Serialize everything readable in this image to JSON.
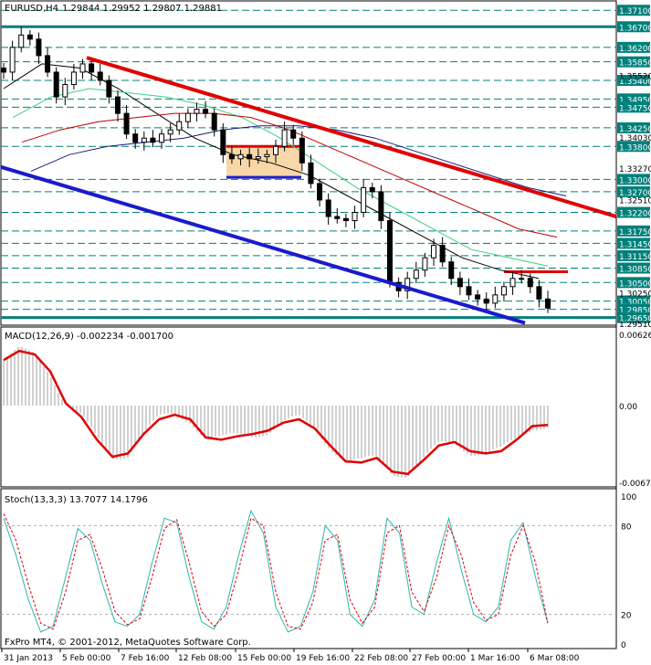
{
  "header": {
    "symbol": "EURUSD,H4",
    "ohlc": "1.29844 1.29952 1.29807 1.29881"
  },
  "macd_header": {
    "label": "MACD(12,26,9) -0.002234 -0.001700"
  },
  "stoch_header": {
    "label": "Stoch(13,3,3) 13.7077 14.1796"
  },
  "copyright": "FxPro MT4, © 2001-2012, MetaQuotes Software Corp.",
  "colors": {
    "price_label_bg": "#00807a",
    "hline": "#00807a",
    "red_line": "#e00000",
    "blue_line": "#1a1acc",
    "box_fill": "#f7d7a8",
    "ma_black": "#000000",
    "ma_green": "#3fd07f",
    "ma_darkred": "#c00000",
    "ma_navy": "#1c1c7a",
    "stoch_main": "#2bb5b0",
    "stoch_signal": "#e00000"
  },
  "chart_data": [
    {
      "type": "candlestick",
      "pane": "price",
      "symbol": "EURUSD",
      "timeframe": "H4",
      "ylim": [
        1.2951,
        1.3726
      ],
      "x_tick_labels": [
        "31 Jan 2013",
        "5 Feb 00:00",
        "7 Feb 16:00",
        "12 Feb 08:00",
        "15 Feb 00:00",
        "19 Feb 16:00",
        "22 Feb 08:00",
        "27 Feb 00:00",
        "1 Mar 16:00",
        "6 Mar 08:00"
      ],
      "y_tick_labels": [
        "1.37100",
        "1.36700",
        "1.36200",
        "1.35850",
        "1.35400",
        "1.34950",
        "1.34750",
        "1.34250",
        "1.33800",
        "1.33000",
        "1.32700",
        "1.32200",
        "1.31750",
        "1.31450",
        "1.31150",
        "1.30850",
        "1.30500",
        "1.30050",
        "1.29850",
        "1.29650"
      ],
      "extra_tick_labels": [
        "1.35520",
        "1.34030",
        "1.33270",
        "1.32510",
        "1.30250",
        "1.29510"
      ],
      "horizontal_levels": [
        1.371,
        1.367,
        1.362,
        1.3585,
        1.354,
        1.3495,
        1.3475,
        1.3425,
        1.338,
        1.33,
        1.327,
        1.322,
        1.3175,
        1.3145,
        1.3115,
        1.3085,
        1.305,
        1.3005,
        1.2985,
        1.2965
      ],
      "solid_levels": [
        1.367,
        1.2965
      ],
      "trendlines": [
        {
          "color": "red",
          "from": [
            "5 Feb 00:00",
            1.3595
          ],
          "to": [
            "right edge",
            1.321
          ]
        },
        {
          "color": "blue",
          "from": [
            "left edge",
            1.333
          ],
          "to": [
            "6 Mar 00:00",
            1.2952
          ]
        }
      ],
      "range_box": {
        "top": 1.338,
        "bottom": 1.3305,
        "from": "14 Feb",
        "to": "19 Feb"
      },
      "resistance_segment": {
        "level": 1.3076,
        "from": "1 Mar",
        "to": "6 Mar"
      },
      "moving_averages": [
        {
          "color": "black",
          "values": [
            1.352,
            1.358,
            1.357,
            1.352,
            1.346,
            1.34,
            1.336,
            1.334,
            1.331,
            1.326,
            1.321,
            1.316,
            1.311,
            1.308,
            1.306
          ]
        },
        {
          "color": "green",
          "values": [
            1.345,
            1.35,
            1.352,
            1.351,
            1.35,
            1.348,
            1.345,
            1.34,
            1.334,
            1.328,
            1.323,
            1.318,
            1.313,
            1.311,
            1.309
          ]
        },
        {
          "color": "dark red",
          "values": [
            1.339,
            1.342,
            1.344,
            1.345,
            1.346,
            1.346,
            1.345,
            1.342,
            1.338,
            1.334,
            1.33,
            1.326,
            1.322,
            1.318,
            1.316
          ]
        },
        {
          "color": "navy",
          "values": [
            1.332,
            1.336,
            1.338,
            1.339,
            1.34,
            1.342,
            1.343,
            1.343,
            1.342,
            1.34,
            1.337,
            1.334,
            1.331,
            1.328,
            1.326
          ]
        }
      ],
      "close_path": [
        1.356,
        1.362,
        1.365,
        1.364,
        1.36,
        1.356,
        1.35,
        1.353,
        1.356,
        1.358,
        1.356,
        1.354,
        1.35,
        1.346,
        1.341,
        1.339,
        1.34,
        1.339,
        1.341,
        1.342,
        1.344,
        1.346,
        1.347,
        1.346,
        1.342,
        1.336,
        1.335,
        1.336,
        1.335,
        1.3355,
        1.336,
        1.338,
        1.342,
        1.34,
        1.334,
        1.329,
        1.325,
        1.321,
        1.3205,
        1.32,
        1.322,
        1.328,
        1.327,
        1.32,
        1.305,
        1.303,
        1.306,
        1.308,
        1.311,
        1.314,
        1.31,
        1.306,
        1.304,
        1.302,
        1.301,
        1.3,
        1.302,
        1.304,
        1.306,
        1.306,
        1.304,
        1.301,
        1.2988
      ]
    },
    {
      "type": "histogram",
      "pane": "macd",
      "name": "MACD(12,26,9)",
      "ylim": [
        -0.00674,
        0.006264
      ],
      "y_tick_labels": [
        "0.006264",
        "0.00",
        "-0.00674"
      ],
      "signal_line": [
        0.004,
        0.0048,
        0.0045,
        0.003,
        0.0002,
        -0.001,
        -0.003,
        -0.0045,
        -0.0042,
        -0.0025,
        -0.0012,
        -0.0008,
        -0.0012,
        -0.0028,
        -0.003,
        -0.0027,
        -0.0025,
        -0.0022,
        -0.0015,
        -0.0012,
        -0.002,
        -0.0035,
        -0.0049,
        -0.005,
        -0.0046,
        -0.0058,
        -0.006,
        -0.0048,
        -0.0035,
        -0.0032,
        -0.004,
        -0.0042,
        -0.004,
        -0.003,
        -0.0018,
        -0.0017
      ]
    },
    {
      "type": "line",
      "pane": "stochastic",
      "name": "Stoch(13,3,3)",
      "ylim": [
        0,
        100
      ],
      "y_tick_labels": [
        "100",
        "80",
        "20",
        "0"
      ],
      "main_line": [
        85,
        60,
        30,
        8,
        12,
        45,
        78,
        70,
        40,
        15,
        12,
        20,
        55,
        85,
        82,
        45,
        15,
        10,
        25,
        60,
        90,
        75,
        25,
        8,
        12,
        35,
        80,
        70,
        20,
        12,
        30,
        85,
        75,
        25,
        20,
        55,
        85,
        50,
        20,
        15,
        25,
        70,
        82,
        45,
        14
      ],
      "signal_line": [
        88,
        70,
        40,
        14,
        10,
        35,
        70,
        74,
        50,
        22,
        13,
        17,
        45,
        78,
        84,
        55,
        22,
        12,
        20,
        50,
        85,
        80,
        35,
        12,
        10,
        28,
        70,
        74,
        30,
        14,
        25,
        75,
        80,
        35,
        22,
        45,
        80,
        60,
        28,
        16,
        20,
        60,
        80,
        55,
        14
      ]
    }
  ]
}
